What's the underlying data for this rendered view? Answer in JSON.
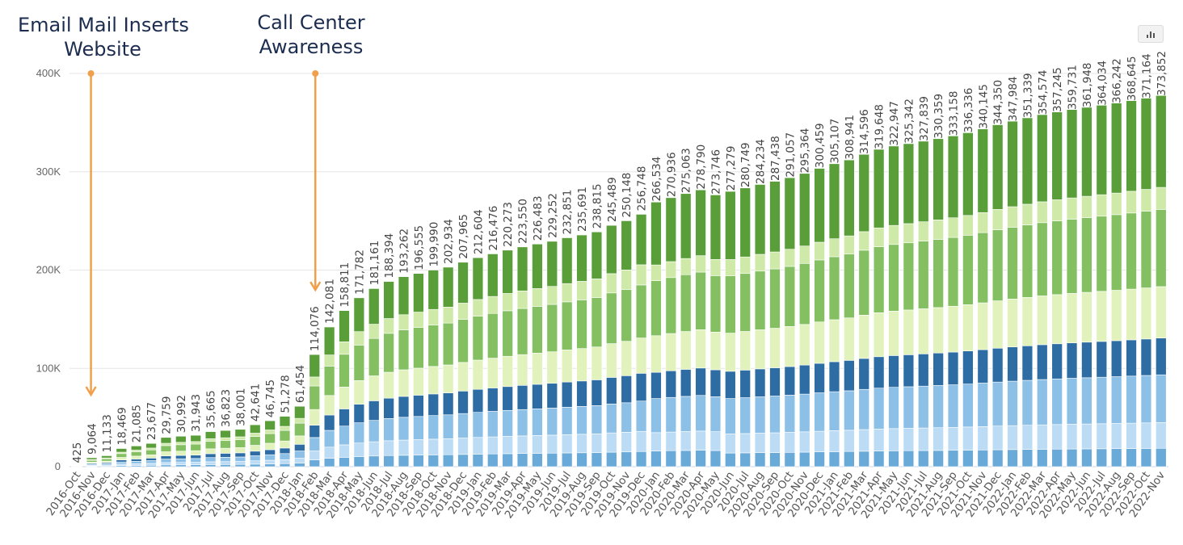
{
  "annotations": {
    "left_line1": "Email Mail Inserts",
    "left_line2": "Website",
    "right_line1": "Call Center",
    "right_line2": "Awareness"
  },
  "colors": {
    "annotation_arrow": "#f0a04b",
    "annotation_text": "#1d2d50",
    "series": [
      "#6aaad9",
      "#bcdcf5",
      "#8dc0e6",
      "#2e6da4",
      "#e2f2bc",
      "#84c061",
      "#cfe9a8",
      "#5a9e3a"
    ]
  },
  "chart_data": {
    "type": "bar",
    "stacked": true,
    "ylim": [
      0,
      400000
    ],
    "yticks": [
      {
        "v": 0,
        "label": "0"
      },
      {
        "v": 100000,
        "label": "100K"
      },
      {
        "v": 200000,
        "label": "200K"
      },
      {
        "v": 300000,
        "label": "300K"
      },
      {
        "v": 400000,
        "label": "400K"
      }
    ],
    "grid": true,
    "legend": "none",
    "annotated_categories": [
      "2016-Nov",
      "2018-Feb"
    ],
    "categories": [
      "2016-Oct",
      "2016-Nov",
      "2016-Dec",
      "2017-Jan",
      "2017-Feb",
      "2017-Mar",
      "2017-Apr",
      "2017-May",
      "2017-Jun",
      "2017-Jul",
      "2017-Aug",
      "2017-Sep",
      "2017-Oct",
      "2017-Nov",
      "2017-Dec",
      "2018-Jan",
      "2018-Feb",
      "2018-Mar",
      "2018-Apr",
      "2018-May",
      "2018-Jun",
      "2018-Jul",
      "2018-Aug",
      "2018-Sep",
      "2018-Oct",
      "2018-Nov",
      "2018-Dec",
      "2019-Jan",
      "2019-Feb",
      "2019-Mar",
      "2019-Apr",
      "2019-May",
      "2019-Jun",
      "2019-Jul",
      "2019-Aug",
      "2019-Sep",
      "2019-Oct",
      "2019-Nov",
      "2019-Dec",
      "2020-Jan",
      "2020-Feb",
      "2020-Mar",
      "2020-Apr",
      "2020-May",
      "2020-Jun",
      "2020-Jul",
      "2020-Aug",
      "2020-Sep",
      "2020-Oct",
      "2020-Nov",
      "2020-Dec",
      "2021-Jan",
      "2021-Feb",
      "2021-Mar",
      "2021-Apr",
      "2021-May",
      "2021-Jun",
      "2021-Jul",
      "2021-Aug",
      "2021-Sep",
      "2021-Oct",
      "2021-Nov",
      "2021-Dec",
      "2022-Jan",
      "2022-Feb",
      "2022-Mar",
      "2022-Apr",
      "2022-May",
      "2022-Jun",
      "2022-Jul",
      "2022-Aug",
      "2022-Sep",
      "2022-Oct",
      "2022-Nov"
    ],
    "totals_labels": [
      "425",
      "9,064",
      "11,133",
      "18,469",
      "21,085",
      "23,677",
      "29,759",
      "30,992",
      "31,943",
      "35,665",
      "36,823",
      "38,001",
      "42,641",
      "46,745",
      "51,278",
      "61,454",
      "114,076",
      "142,081",
      "158,811",
      "171,782",
      "181,161",
      "188,394",
      "193,262",
      "196,555",
      "199,990",
      "202,934",
      "207,965",
      "212,604",
      "216,476",
      "220,273",
      "223,550",
      "226,483",
      "229,252",
      "232,851",
      "235,691",
      "238,815",
      "245,489",
      "250,148",
      "256,748",
      "266,534",
      "270,936",
      "275,063",
      "278,790",
      "273,746",
      "277,279",
      "280,749",
      "284,234",
      "287,438",
      "291,057",
      "295,364",
      "300,459",
      "305,107",
      "308,941",
      "314,596",
      "319,648",
      "322,947",
      "325,342",
      "327,839",
      "330,359",
      "333,158",
      "336,336",
      "340,145",
      "344,350",
      "347,984",
      "351,339",
      "354,574",
      "357,245",
      "359,731",
      "361,948",
      "364,034",
      "366,242",
      "368,645",
      "371,164",
      "373,852"
    ],
    "series_share": [
      {
        "values": [
          0.06,
          0.06,
          0.06,
          0.06,
          0.06,
          0.06,
          0.06,
          0.06,
          0.06,
          0.06,
          0.06,
          0.06,
          0.06,
          0.06,
          0.06,
          0.06,
          0.06,
          0.06,
          0.06,
          0.06,
          0.06,
          0.06,
          0.06,
          0.06,
          0.06,
          0.06,
          0.06,
          0.06,
          0.06,
          0.06,
          0.06,
          0.06,
          0.06,
          0.06,
          0.06,
          0.06,
          0.06,
          0.06,
          0.06,
          0.06,
          0.06,
          0.06,
          0.06,
          0.06,
          0.05,
          0.05,
          0.05,
          0.05,
          0.05,
          0.05,
          0.05,
          0.05,
          0.05,
          0.05,
          0.05,
          0.05,
          0.05,
          0.05,
          0.05,
          0.05,
          0.05,
          0.05,
          0.05,
          0.05,
          0.05,
          0.05,
          0.05,
          0.05,
          0.05,
          0.05,
          0.05,
          0.05,
          0.05,
          0.05
        ]
      },
      {
        "values": [
          0.08,
          0.08,
          0.08,
          0.08,
          0.08,
          0.08,
          0.08,
          0.08,
          0.08,
          0.08,
          0.08,
          0.08,
          0.08,
          0.08,
          0.08,
          0.08,
          0.08,
          0.08,
          0.08,
          0.08,
          0.08,
          0.08,
          0.08,
          0.08,
          0.08,
          0.08,
          0.08,
          0.08,
          0.08,
          0.08,
          0.08,
          0.08,
          0.08,
          0.08,
          0.08,
          0.08,
          0.08,
          0.08,
          0.08,
          0.07,
          0.07,
          0.07,
          0.07,
          0.07,
          0.07,
          0.07,
          0.07,
          0.07,
          0.07,
          0.07,
          0.07,
          0.07,
          0.07,
          0.07,
          0.07,
          0.07,
          0.07,
          0.07,
          0.07,
          0.07,
          0.07,
          0.07,
          0.07,
          0.07,
          0.07,
          0.07,
          0.07,
          0.07,
          0.07,
          0.07,
          0.07,
          0.07,
          0.07,
          0.07
        ]
      },
      {
        "values": [
          0.12,
          0.12,
          0.12,
          0.12,
          0.12,
          0.12,
          0.12,
          0.12,
          0.12,
          0.12,
          0.12,
          0.12,
          0.12,
          0.12,
          0.12,
          0.12,
          0.12,
          0.12,
          0.12,
          0.12,
          0.12,
          0.12,
          0.12,
          0.12,
          0.12,
          0.12,
          0.12,
          0.12,
          0.12,
          0.12,
          0.12,
          0.12,
          0.12,
          0.12,
          0.12,
          0.12,
          0.12,
          0.12,
          0.12,
          0.13,
          0.13,
          0.13,
          0.13,
          0.13,
          0.13,
          0.13,
          0.13,
          0.13,
          0.13,
          0.13,
          0.13,
          0.13,
          0.13,
          0.13,
          0.13,
          0.13,
          0.13,
          0.13,
          0.13,
          0.13,
          0.13,
          0.13,
          0.13,
          0.13,
          0.13,
          0.13,
          0.13,
          0.13,
          0.13,
          0.13,
          0.13,
          0.13,
          0.13,
          0.13
        ]
      },
      {
        "values": [
          0.11,
          0.11,
          0.11,
          0.11,
          0.11,
          0.11,
          0.11,
          0.11,
          0.11,
          0.11,
          0.11,
          0.11,
          0.11,
          0.11,
          0.11,
          0.11,
          0.11,
          0.11,
          0.11,
          0.11,
          0.11,
          0.11,
          0.11,
          0.11,
          0.11,
          0.11,
          0.11,
          0.11,
          0.11,
          0.11,
          0.11,
          0.11,
          0.11,
          0.11,
          0.11,
          0.11,
          0.11,
          0.11,
          0.11,
          0.1,
          0.1,
          0.1,
          0.1,
          0.1,
          0.1,
          0.1,
          0.1,
          0.1,
          0.1,
          0.1,
          0.1,
          0.1,
          0.1,
          0.1,
          0.1,
          0.1,
          0.1,
          0.1,
          0.1,
          0.1,
          0.1,
          0.1,
          0.1,
          0.1,
          0.1,
          0.1,
          0.1,
          0.1,
          0.1,
          0.1,
          0.1,
          0.1,
          0.1,
          0.1
        ]
      },
      {
        "values": [
          0.14,
          0.14,
          0.14,
          0.14,
          0.14,
          0.14,
          0.14,
          0.14,
          0.14,
          0.14,
          0.14,
          0.14,
          0.14,
          0.14,
          0.14,
          0.14,
          0.14,
          0.14,
          0.14,
          0.14,
          0.14,
          0.14,
          0.14,
          0.14,
          0.14,
          0.14,
          0.14,
          0.14,
          0.14,
          0.14,
          0.14,
          0.14,
          0.14,
          0.14,
          0.14,
          0.14,
          0.14,
          0.14,
          0.14,
          0.14,
          0.14,
          0.14,
          0.14,
          0.14,
          0.14,
          0.14,
          0.14,
          0.14,
          0.14,
          0.14,
          0.14,
          0.14,
          0.14,
          0.14,
          0.14,
          0.14,
          0.14,
          0.14,
          0.14,
          0.14,
          0.14,
          0.14,
          0.14,
          0.14,
          0.14,
          0.14,
          0.14,
          0.14,
          0.14,
          0.14,
          0.14,
          0.14,
          0.14,
          0.14
        ]
      },
      {
        "values": [
          0.21,
          0.21,
          0.21,
          0.21,
          0.21,
          0.21,
          0.21,
          0.21,
          0.21,
          0.21,
          0.21,
          0.21,
          0.21,
          0.21,
          0.21,
          0.21,
          0.21,
          0.21,
          0.21,
          0.21,
          0.21,
          0.21,
          0.21,
          0.21,
          0.21,
          0.21,
          0.21,
          0.21,
          0.21,
          0.21,
          0.21,
          0.21,
          0.21,
          0.21,
          0.21,
          0.21,
          0.21,
          0.21,
          0.21,
          0.21,
          0.21,
          0.21,
          0.21,
          0.21,
          0.21,
          0.21,
          0.21,
          0.21,
          0.21,
          0.21,
          0.21,
          0.21,
          0.21,
          0.21,
          0.21,
          0.21,
          0.21,
          0.21,
          0.21,
          0.21,
          0.21,
          0.21,
          0.21,
          0.21,
          0.21,
          0.21,
          0.21,
          0.21,
          0.21,
          0.21,
          0.21,
          0.21,
          0.21,
          0.21
        ]
      },
      {
        "values": [
          0.08,
          0.08,
          0.08,
          0.08,
          0.08,
          0.08,
          0.08,
          0.08,
          0.08,
          0.08,
          0.08,
          0.08,
          0.08,
          0.08,
          0.08,
          0.08,
          0.08,
          0.08,
          0.08,
          0.08,
          0.08,
          0.08,
          0.08,
          0.08,
          0.08,
          0.08,
          0.08,
          0.08,
          0.08,
          0.08,
          0.08,
          0.08,
          0.08,
          0.08,
          0.08,
          0.08,
          0.08,
          0.08,
          0.08,
          0.06,
          0.06,
          0.06,
          0.06,
          0.06,
          0.06,
          0.06,
          0.06,
          0.06,
          0.06,
          0.06,
          0.06,
          0.06,
          0.06,
          0.06,
          0.06,
          0.06,
          0.06,
          0.06,
          0.06,
          0.06,
          0.06,
          0.06,
          0.06,
          0.06,
          0.06,
          0.06,
          0.06,
          0.06,
          0.06,
          0.06,
          0.06,
          0.06,
          0.06,
          0.06
        ]
      },
      {
        "values": [
          0.2,
          0.2,
          0.2,
          0.2,
          0.2,
          0.2,
          0.2,
          0.2,
          0.2,
          0.2,
          0.2,
          0.2,
          0.2,
          0.2,
          0.2,
          0.2,
          0.2,
          0.2,
          0.2,
          0.2,
          0.2,
          0.2,
          0.2,
          0.2,
          0.2,
          0.2,
          0.2,
          0.2,
          0.2,
          0.2,
          0.2,
          0.2,
          0.2,
          0.2,
          0.2,
          0.2,
          0.2,
          0.2,
          0.2,
          0.24,
          0.24,
          0.24,
          0.24,
          0.24,
          0.25,
          0.25,
          0.25,
          0.25,
          0.25,
          0.25,
          0.25,
          0.25,
          0.25,
          0.25,
          0.25,
          0.25,
          0.25,
          0.25,
          0.25,
          0.25,
          0.25,
          0.25,
          0.25,
          0.25,
          0.25,
          0.25,
          0.25,
          0.25,
          0.25,
          0.25,
          0.25,
          0.25,
          0.25,
          0.25
        ]
      }
    ]
  }
}
